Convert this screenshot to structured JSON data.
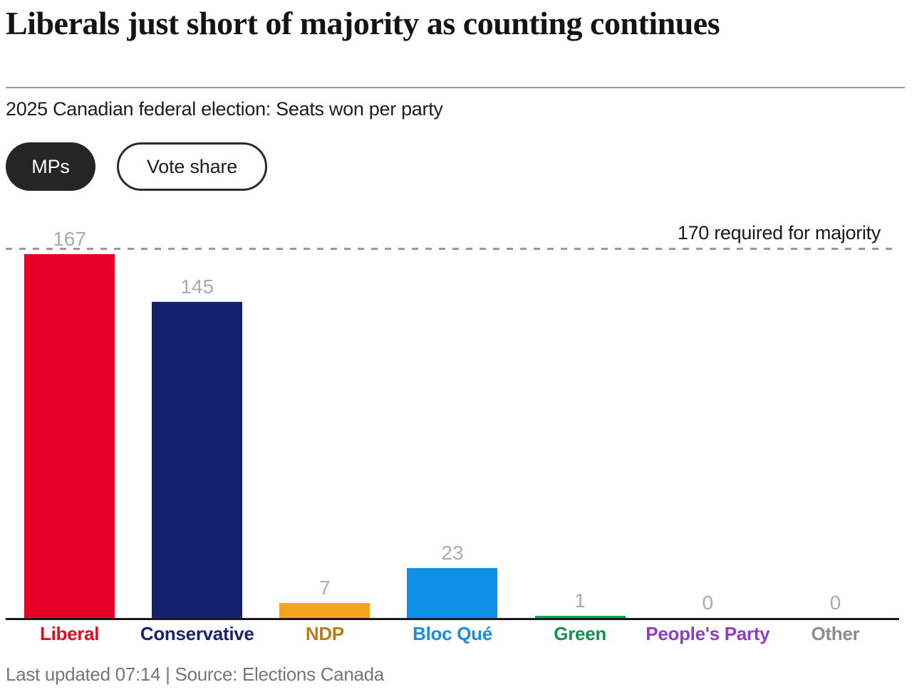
{
  "header": {
    "title": "Liberals just short of majority as counting continues",
    "subtitle": "2025 Canadian federal election: Seats won per party"
  },
  "toggles": {
    "mps_label": "MPs",
    "vote_share_label": "Vote share"
  },
  "chart_data": {
    "type": "bar",
    "title": "Liberals just short of majority as counting continues",
    "subtitle": "2025 Canadian federal election: Seats won per party",
    "categories": [
      "Liberal",
      "Conservative",
      "NDP",
      "Bloc Qué",
      "Green",
      "People's Party",
      "Other"
    ],
    "values": [
      167,
      145,
      7,
      23,
      1,
      0,
      0
    ],
    "bar_colors": [
      "#e60028",
      "#14216c",
      "#f2a41d",
      "#0f90e7",
      "#14a35c",
      "#8d3ec9",
      "#9a9a9a"
    ],
    "label_colors": [
      "#df0d24",
      "#1b2270",
      "#b97c19",
      "#1d8ce0",
      "#149150",
      "#8d3ec9",
      "#8c8c8c"
    ],
    "value_label_color": "#ababab",
    "reference_line": {
      "value": 170,
      "label": "170 required for majority",
      "color": "#999999",
      "style": "dashed"
    },
    "ylim": [
      0,
      185
    ],
    "grid": false,
    "legend": false,
    "ylabel": "",
    "xlabel": ""
  },
  "footer": {
    "text": "Last updated 07:14 | Source: Elections Canada"
  }
}
